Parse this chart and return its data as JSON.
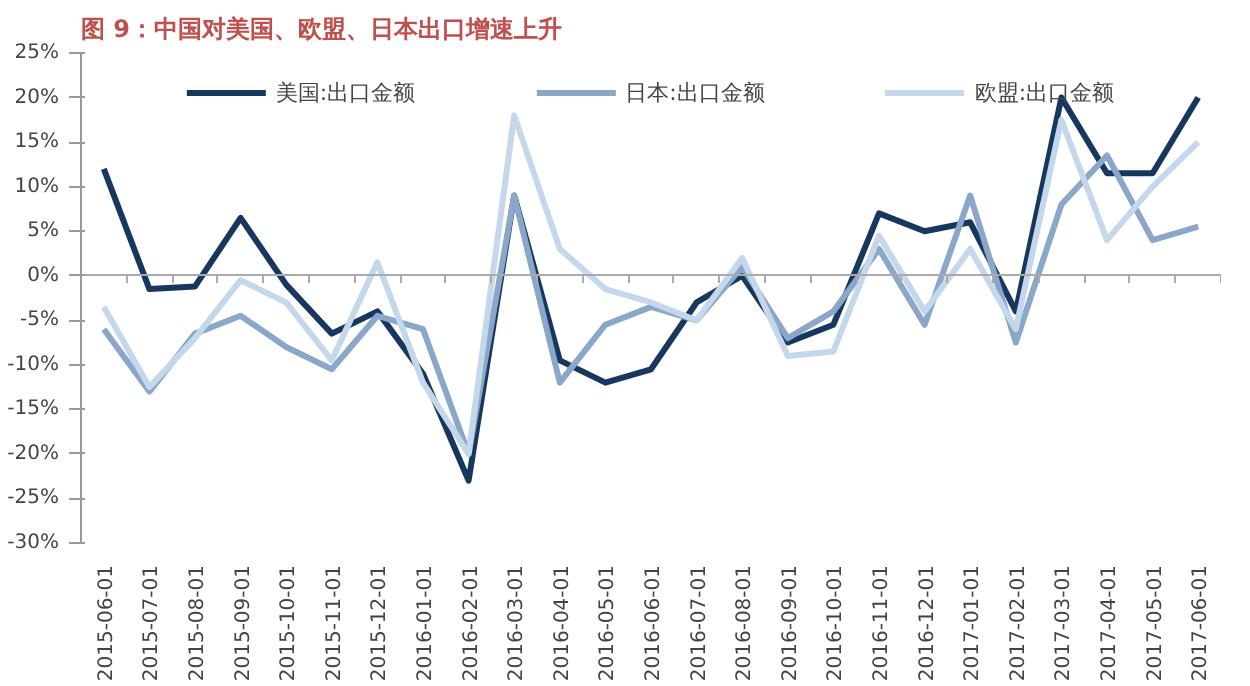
{
  "chart_data": {
    "type": "line",
    "title": "图 9：中国对美国、欧盟、日本出口增速上升",
    "categories": [
      "2015-06-01",
      "2015-07-01",
      "2015-08-01",
      "2015-09-01",
      "2015-10-01",
      "2015-11-01",
      "2015-12-01",
      "2016-01-01",
      "2016-02-01",
      "2016-03-01",
      "2016-04-01",
      "2016-05-01",
      "2016-06-01",
      "2016-07-01",
      "2016-08-01",
      "2016-09-01",
      "2016-10-01",
      "2016-11-01",
      "2016-12-01",
      "2017-01-01",
      "2017-02-01",
      "2017-03-01",
      "2017-04-01",
      "2017-05-01",
      "2017-06-01"
    ],
    "series": [
      {
        "name": "美国:出口金额",
        "color": "#17375e",
        "values": [
          12,
          -1.5,
          -1.2,
          6.5,
          -1,
          -6.5,
          -4,
          -11,
          -23,
          9,
          -9.5,
          -12,
          -10.5,
          -3,
          0,
          -7.5,
          -5.5,
          7,
          5,
          6,
          -4,
          20,
          11.5,
          11.5,
          20
        ]
      },
      {
        "name": "日本:出口金额",
        "color": "#8aa6c8",
        "values": [
          -6,
          -13,
          -6.5,
          -4.5,
          -8,
          -10.5,
          -4.5,
          -6,
          -20,
          9,
          -12,
          -5.5,
          -3.5,
          -5,
          1,
          -7,
          -4,
          3,
          -5.5,
          9,
          -7.5,
          8,
          13.5,
          4,
          5.5
        ]
      },
      {
        "name": "欧盟:出口金额",
        "color": "#c5d7ea",
        "values": [
          -3.5,
          -12.5,
          -7,
          -0.5,
          -3,
          -9.5,
          1.5,
          -12,
          -20,
          18,
          3,
          -1.5,
          -3,
          -5,
          2,
          -9,
          -8.5,
          4.5,
          -4,
          3,
          -6,
          17.5,
          4,
          10,
          15
        ]
      }
    ],
    "ylim": [
      -30,
      25
    ],
    "yticks": [
      {
        "value": -30,
        "label": "-30%"
      },
      {
        "value": -25,
        "label": "-25%"
      },
      {
        "value": -20,
        "label": "-20%"
      },
      {
        "value": -15,
        "label": "-15%"
      },
      {
        "value": -10,
        "label": "-10%"
      },
      {
        "value": -5,
        "label": "-5%"
      },
      {
        "value": 0,
        "label": "0%"
      },
      {
        "value": 5,
        "label": "5%"
      },
      {
        "value": 10,
        "label": "10%"
      },
      {
        "value": 15,
        "label": "15%"
      },
      {
        "value": 20,
        "label": "20%"
      },
      {
        "value": 25,
        "label": "25%"
      }
    ],
    "ref_lines": [
      {
        "axis": "y",
        "value": 0,
        "color": "#aaaaaa"
      }
    ],
    "grid": false,
    "legend": "top",
    "marker": "none",
    "line_style": "solid"
  }
}
